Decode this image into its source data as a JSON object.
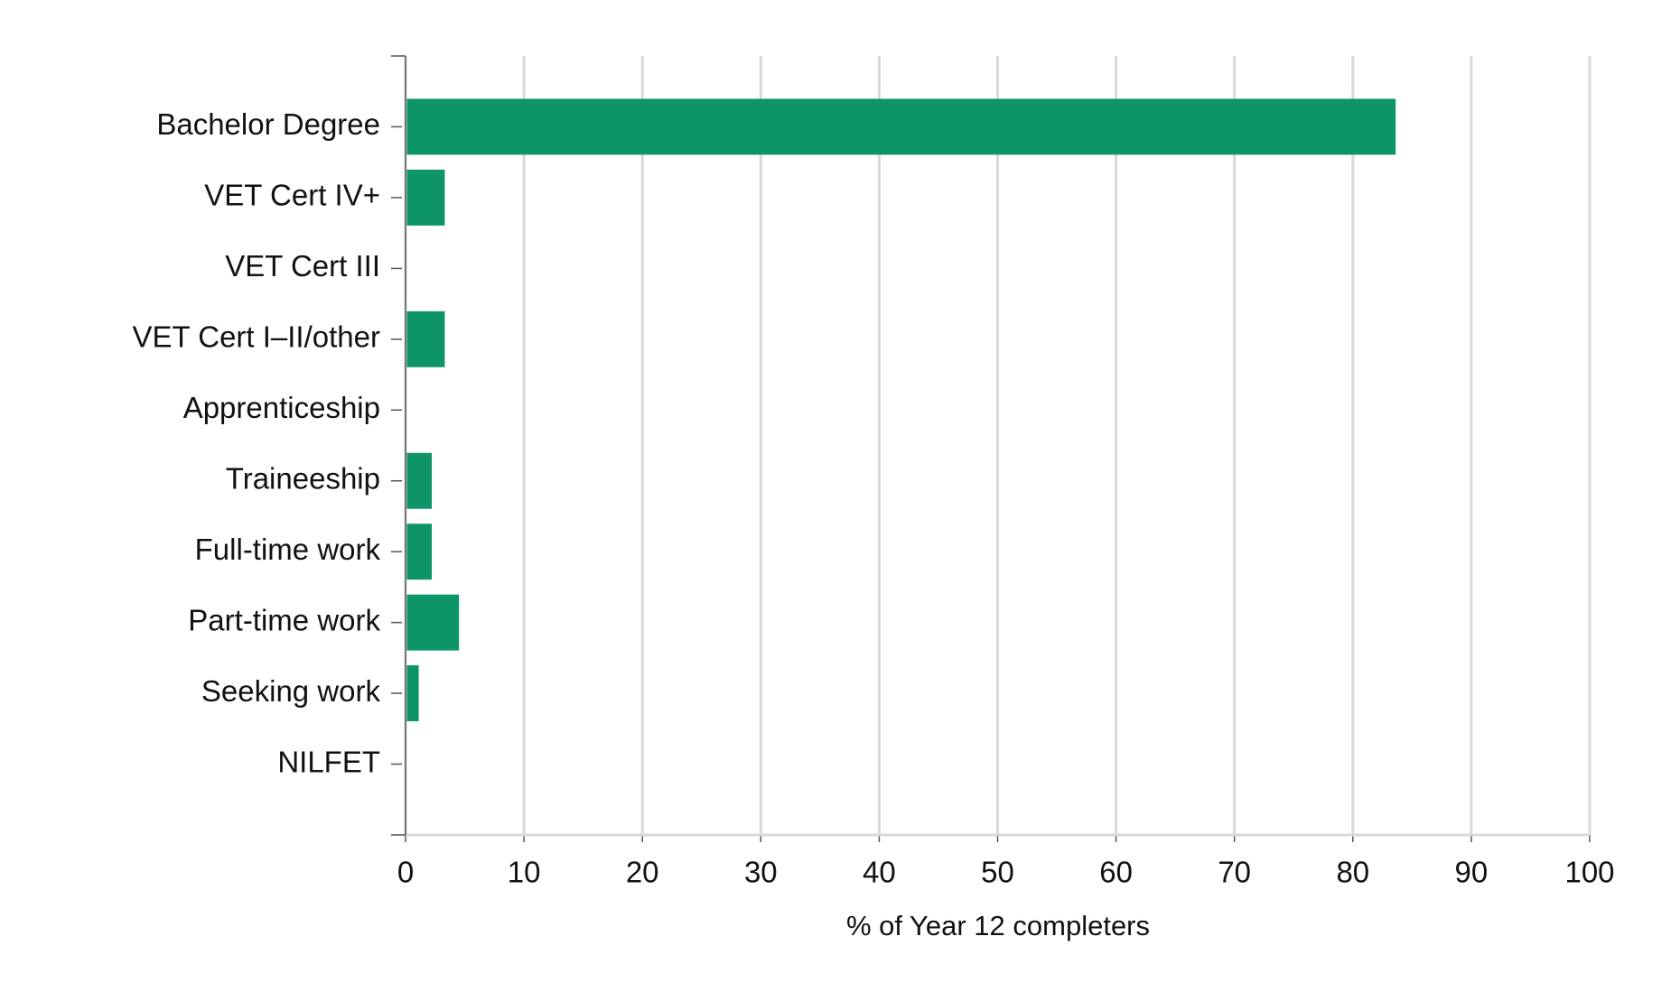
{
  "chart_data": {
    "type": "barh",
    "categories": [
      "Bachelor Degree",
      "VET Cert IV+",
      "VET Cert III",
      "VET Cert I–II/other",
      "Apprenticeship",
      "Traineeship",
      "Full-time work",
      "Part-time work",
      "Seeking work",
      "NILFET"
    ],
    "values": [
      83.5,
      3.2,
      0,
      3.2,
      0,
      2.1,
      2.1,
      4.4,
      1.0,
      0
    ],
    "color": "#0e9469",
    "x_label": "% of Year 12 completers",
    "xlim": [
      0,
      100
    ],
    "xticks": [
      0,
      10,
      20,
      30,
      40,
      50,
      60,
      70,
      80,
      90,
      100
    ],
    "grid": true
  }
}
